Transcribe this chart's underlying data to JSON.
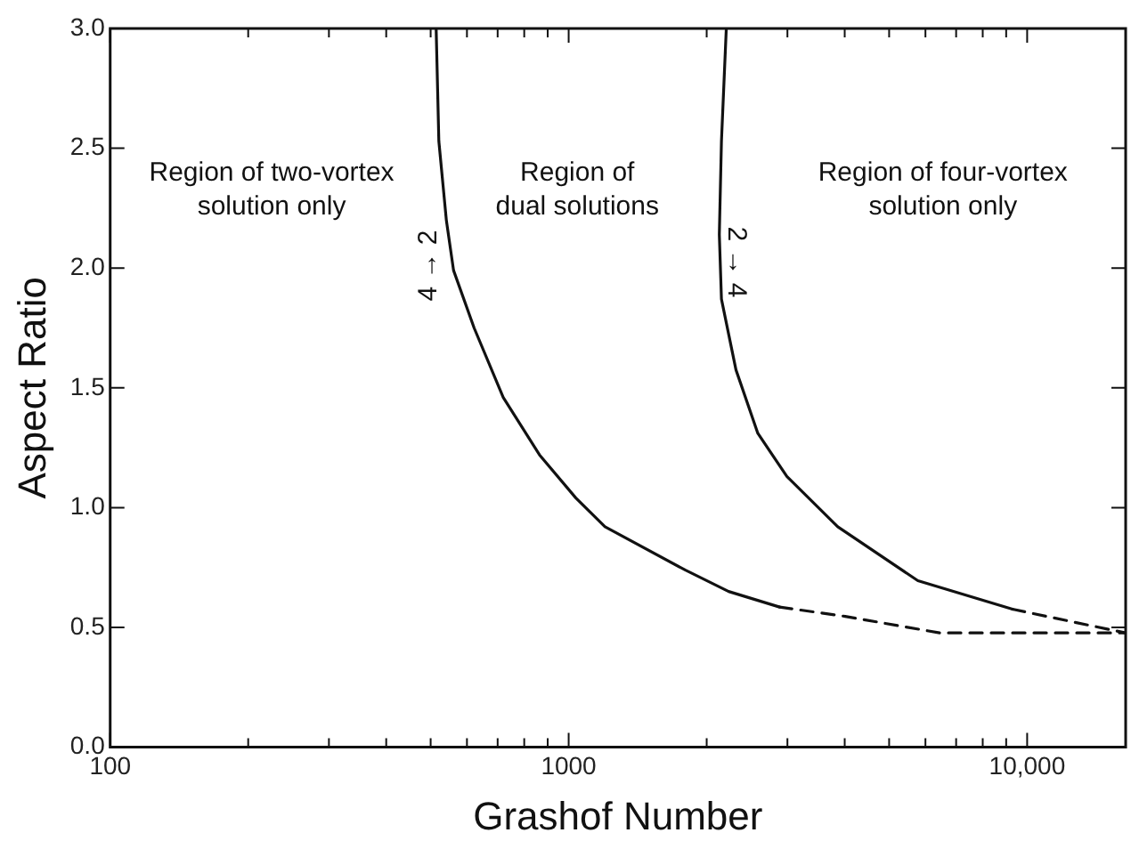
{
  "chart_data": {
    "type": "line",
    "xlabel": "Grashof Number",
    "ylabel": "Aspect Ratio",
    "log": "x",
    "grid": false,
    "legend": false,
    "marker": "none",
    "xlim": [
      100,
      16400
    ],
    "ylim": [
      0,
      3
    ],
    "xticks": [
      100,
      {
        "value": 200,
        "label": null
      },
      {
        "value": 300,
        "label": null
      },
      {
        "value": 400,
        "label": null
      },
      {
        "value": 500,
        "label": null
      },
      {
        "value": 600,
        "label": null
      },
      {
        "value": 700,
        "label": null
      },
      {
        "value": 800,
        "label": null
      },
      {
        "value": 900,
        "label": null
      },
      1000,
      {
        "value": 2000,
        "label": null
      },
      {
        "value": 3000,
        "label": null
      },
      {
        "value": 4000,
        "label": null
      },
      {
        "value": 5000,
        "label": null
      },
      {
        "value": 6000,
        "label": null
      },
      {
        "value": 7000,
        "label": null
      },
      {
        "value": 8000,
        "label": null
      },
      {
        "value": 9000,
        "label": null
      },
      {
        "value": 10000,
        "label": "10,000"
      }
    ],
    "yticks": [
      {
        "value": 0,
        "label": "0.0"
      },
      {
        "value": 0.5,
        "label": "0.5"
      },
      {
        "value": 1,
        "label": "1.0"
      },
      {
        "value": 1.5,
        "label": "1.5"
      },
      {
        "value": 2,
        "label": "2.0"
      },
      {
        "value": 2.5,
        "label": "2.5"
      },
      {
        "value": 3,
        "label": "3.0"
      }
    ],
    "series": [
      {
        "color": "#111111",
        "line_style": "solid",
        "x": [
          514,
          521,
          541,
          561,
          622,
          720,
          864,
          1037,
          1200,
          1794,
          2233,
          2884
        ],
        "values": [
          3.0,
          2.53,
          2.2,
          1.99,
          1.75,
          1.46,
          1.22,
          1.04,
          0.92,
          0.74,
          0.65,
          0.585
        ]
      },
      {
        "color": "#111111",
        "line_style": "dashed",
        "x": [
          2884,
          4010,
          6450,
          10000,
          16400
        ],
        "values": [
          0.585,
          0.546,
          0.477,
          0.477,
          0.477
        ]
      },
      {
        "color": "#111111",
        "line_style": "solid",
        "x": [
          2207,
          2154,
          2131,
          2154,
          2317,
          2586,
          2992,
          3862,
          5776,
          9290
        ],
        "values": [
          3.0,
          2.53,
          2.14,
          1.87,
          1.575,
          1.31,
          1.13,
          0.92,
          0.695,
          0.576
        ]
      },
      {
        "color": "#111111",
        "line_style": "dashed",
        "x": [
          9290,
          16400
        ],
        "values": [
          0.576,
          0.477
        ]
      }
    ],
    "annotations": [
      "Region of two-vortex\nsolution only",
      "Region of\ndual solutions",
      "Region of four-vortex\nsolution only",
      "4 → 2",
      "2 → 4"
    ]
  }
}
